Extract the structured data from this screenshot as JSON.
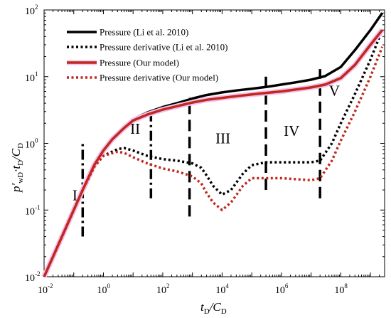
{
  "chart_data": {
    "type": "line",
    "xscale": "log",
    "yscale": "log",
    "xlim": [
      0.01,
      3000000000
    ],
    "ylim": [
      0.01,
      100
    ],
    "x_ticks": [
      {
        "base": "10",
        "exp": "-2",
        "value": 0.01
      },
      {
        "base": "10",
        "exp": "0",
        "value": 1
      },
      {
        "base": "10",
        "exp": "2",
        "value": 100
      },
      {
        "base": "10",
        "exp": "4",
        "value": 10000
      },
      {
        "base": "10",
        "exp": "6",
        "value": 1000000
      },
      {
        "base": "10",
        "exp": "8",
        "value": 100000000
      }
    ],
    "y_ticks": [
      {
        "base": "10",
        "exp": "-2",
        "value": 0.01
      },
      {
        "base": "10",
        "exp": "-1",
        "value": 0.1
      },
      {
        "base": "10",
        "exp": "0",
        "value": 1
      },
      {
        "base": "10",
        "exp": "1",
        "value": 10
      },
      {
        "base": "10",
        "exp": "2",
        "value": 100
      }
    ],
    "xlabel": {
      "main": "t",
      "sub": "D",
      "slash": "/C",
      "sub2": "D"
    },
    "ylabel": {
      "main": "p′",
      "sub": "wD",
      "mid": "·t",
      "sub2": "D",
      "slash": "/C",
      "sub3": "D"
    },
    "legend_position": "top-left",
    "series": [
      {
        "name": "Pressure (Li et al. 2010)",
        "color": "#000000",
        "style": "solid",
        "points": [
          [
            0.01,
            0.01
          ],
          [
            0.02,
            0.02
          ],
          [
            0.05,
            0.05
          ],
          [
            0.1,
            0.1
          ],
          [
            0.2,
            0.2
          ],
          [
            0.5,
            0.48
          ],
          [
            1,
            0.8
          ],
          [
            2,
            1.2
          ],
          [
            5,
            1.8
          ],
          [
            10,
            2.3
          ],
          [
            30,
            2.9
          ],
          [
            100,
            3.5
          ],
          [
            300,
            4.0
          ],
          [
            1000,
            4.7
          ],
          [
            3000,
            5.3
          ],
          [
            10000,
            5.8
          ],
          [
            30000,
            6.2
          ],
          [
            100000,
            6.6
          ],
          [
            300000,
            7.0
          ],
          [
            1000000,
            7.6
          ],
          [
            3000000,
            8.2
          ],
          [
            10000000,
            9.0
          ],
          [
            30000000,
            10.2
          ],
          [
            100000000,
            14
          ],
          [
            300000000,
            25
          ],
          [
            1000000000,
            50
          ],
          [
            2500000000,
            90
          ]
        ]
      },
      {
        "name": "Pressure derivative (Li et al. 2010)",
        "color": "#000000",
        "style": "dotted",
        "points": [
          [
            0.01,
            0.01
          ],
          [
            0.02,
            0.02
          ],
          [
            0.05,
            0.05
          ],
          [
            0.1,
            0.1
          ],
          [
            0.2,
            0.2
          ],
          [
            0.5,
            0.45
          ],
          [
            1,
            0.65
          ],
          [
            3,
            0.82
          ],
          [
            5,
            0.85
          ],
          [
            10,
            0.78
          ],
          [
            30,
            0.65
          ],
          [
            100,
            0.58
          ],
          [
            300,
            0.55
          ],
          [
            1000,
            0.5
          ],
          [
            2000,
            0.43
          ],
          [
            3000,
            0.33
          ],
          [
            5000,
            0.23
          ],
          [
            10000,
            0.17
          ],
          [
            20000,
            0.2
          ],
          [
            50000,
            0.35
          ],
          [
            100000,
            0.47
          ],
          [
            300000,
            0.52
          ],
          [
            1000000,
            0.52
          ],
          [
            10000000,
            0.52
          ],
          [
            20000000,
            0.55
          ],
          [
            50000000,
            1.0
          ],
          [
            100000000,
            2.0
          ],
          [
            300000000,
            5.5
          ],
          [
            1000000000,
            18
          ],
          [
            2500000000,
            50
          ]
        ]
      },
      {
        "name": "Pressure (Our model)",
        "color": "#c0281e",
        "style": "solid",
        "points": [
          [
            0.01,
            0.01
          ],
          [
            0.02,
            0.02
          ],
          [
            0.05,
            0.05
          ],
          [
            0.1,
            0.1
          ],
          [
            0.2,
            0.2
          ],
          [
            0.5,
            0.48
          ],
          [
            1,
            0.78
          ],
          [
            2,
            1.15
          ],
          [
            5,
            1.7
          ],
          [
            10,
            2.2
          ],
          [
            30,
            2.7
          ],
          [
            100,
            3.2
          ],
          [
            300,
            3.6
          ],
          [
            1000,
            4.1
          ],
          [
            3000,
            4.5
          ],
          [
            10000,
            4.8
          ],
          [
            30000,
            5.1
          ],
          [
            100000,
            5.4
          ],
          [
            300000,
            5.7
          ],
          [
            1000000,
            6.0
          ],
          [
            3000000,
            6.4
          ],
          [
            10000000,
            6.9
          ],
          [
            30000000,
            7.6
          ],
          [
            100000000,
            9.5
          ],
          [
            300000000,
            15
          ],
          [
            1000000000,
            30
          ],
          [
            2500000000,
            50
          ]
        ]
      },
      {
        "name": "Pressure derivative (Our model)",
        "color": "#c0281e",
        "style": "dotted",
        "points": [
          [
            0.01,
            0.01
          ],
          [
            0.02,
            0.02
          ],
          [
            0.05,
            0.05
          ],
          [
            0.1,
            0.1
          ],
          [
            0.2,
            0.2
          ],
          [
            0.5,
            0.45
          ],
          [
            1,
            0.65
          ],
          [
            3,
            0.75
          ],
          [
            5,
            0.72
          ],
          [
            10,
            0.62
          ],
          [
            30,
            0.5
          ],
          [
            100,
            0.42
          ],
          [
            300,
            0.38
          ],
          [
            1000,
            0.32
          ],
          [
            2000,
            0.25
          ],
          [
            3000,
            0.18
          ],
          [
            5000,
            0.13
          ],
          [
            10000,
            0.1
          ],
          [
            20000,
            0.13
          ],
          [
            50000,
            0.23
          ],
          [
            100000,
            0.3
          ],
          [
            300000,
            0.3
          ],
          [
            1000000,
            0.3
          ],
          [
            10000000,
            0.28
          ],
          [
            20000000,
            0.3
          ],
          [
            50000000,
            0.55
          ],
          [
            100000000,
            1.1
          ],
          [
            300000000,
            3
          ],
          [
            1000000000,
            10
          ],
          [
            2500000000,
            28
          ]
        ]
      }
    ],
    "flow_regimes": [
      {
        "label": "I",
        "boundary_x": 0.2,
        "line_y": [
          0.04,
          1.0
        ],
        "style": "dash-dot",
        "label_x": 0.09,
        "label_y": 0.14
      },
      {
        "label": "II",
        "boundary_x": 40,
        "line_y": [
          0.15,
          3.2
        ],
        "style": "dash-dot",
        "label_x": 8,
        "label_y": 1.4
      },
      {
        "label": "III",
        "boundary_x": 800,
        "line_y": [
          0.08,
          5.0
        ],
        "style": "dashed",
        "label_x": 6000,
        "label_y": 1.0
      },
      {
        "label": "IV",
        "boundary_x": 300000,
        "line_y": [
          0.2,
          10.0
        ],
        "style": "dashed",
        "label_x": 1200000,
        "label_y": 1.3
      },
      {
        "label": "V",
        "boundary_x": 20000000,
        "line_y": [
          0.15,
          13.0
        ],
        "style": "dashed",
        "label_x": 40000000,
        "label_y": 5.2
      }
    ]
  }
}
